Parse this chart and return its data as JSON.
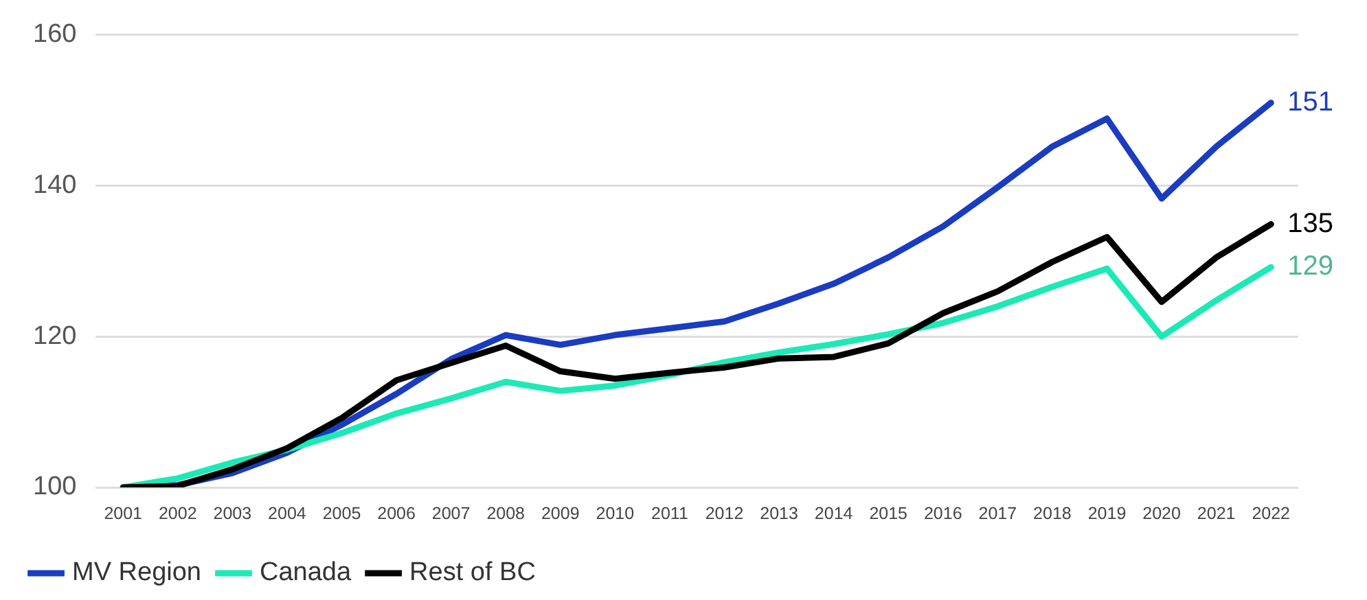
{
  "chart_data": {
    "type": "line",
    "categories": [
      "2001",
      "2002",
      "2003",
      "2004",
      "2005",
      "2006",
      "2007",
      "2008",
      "2009",
      "2010",
      "2011",
      "2012",
      "2013",
      "2014",
      "2015",
      "2016",
      "2017",
      "2018",
      "2019",
      "2020",
      "2021",
      "2022"
    ],
    "series": [
      {
        "name": "MV Region",
        "color": "#1a3cc0",
        "values": [
          100,
          100.3,
          101.9,
          104.6,
          108.3,
          112.4,
          117,
          120.2,
          118.9,
          120.2,
          121.1,
          122,
          124.4,
          127,
          130.5,
          134.6,
          139.8,
          145.2,
          148.9,
          138.3,
          145.2,
          151
        ],
        "value_labels": [
          null,
          null,
          null,
          null,
          null,
          null,
          null,
          null,
          null,
          null,
          null,
          null,
          null,
          null,
          null,
          null,
          null,
          null,
          null,
          null,
          null,
          "151"
        ]
      },
      {
        "name": "Canada",
        "color": "#1de9b6",
        "values": [
          100,
          101.2,
          103.3,
          105,
          107.2,
          109.8,
          111.8,
          114,
          112.8,
          113.5,
          114.9,
          116.6,
          117.9,
          119,
          120.3,
          121.8,
          124,
          126.6,
          129,
          120,
          124.8,
          129.2
        ],
        "value_labels": [
          null,
          null,
          null,
          null,
          null,
          null,
          null,
          null,
          null,
          null,
          null,
          null,
          null,
          null,
          null,
          null,
          null,
          null,
          null,
          null,
          null,
          "129"
        ]
      },
      {
        "name": "Rest of BC",
        "color": "#000000",
        "values": [
          100,
          100.2,
          102.4,
          105.2,
          109.2,
          114.2,
          116.5,
          118.8,
          115.4,
          114.4,
          115.2,
          115.9,
          117.1,
          117.3,
          119.1,
          123.1,
          126,
          129.9,
          133.2,
          124.6,
          130.5,
          134.9
        ],
        "value_labels": [
          null,
          null,
          null,
          null,
          null,
          null,
          null,
          null,
          null,
          null,
          null,
          null,
          null,
          null,
          null,
          null,
          null,
          null,
          null,
          null,
          null,
          "135"
        ]
      }
    ],
    "ylim": [
      100,
      160
    ],
    "yticks": [
      100,
      120,
      140,
      160
    ],
    "grid": "y",
    "legend": "bottom left",
    "marker": "none",
    "line_style": "solid"
  }
}
